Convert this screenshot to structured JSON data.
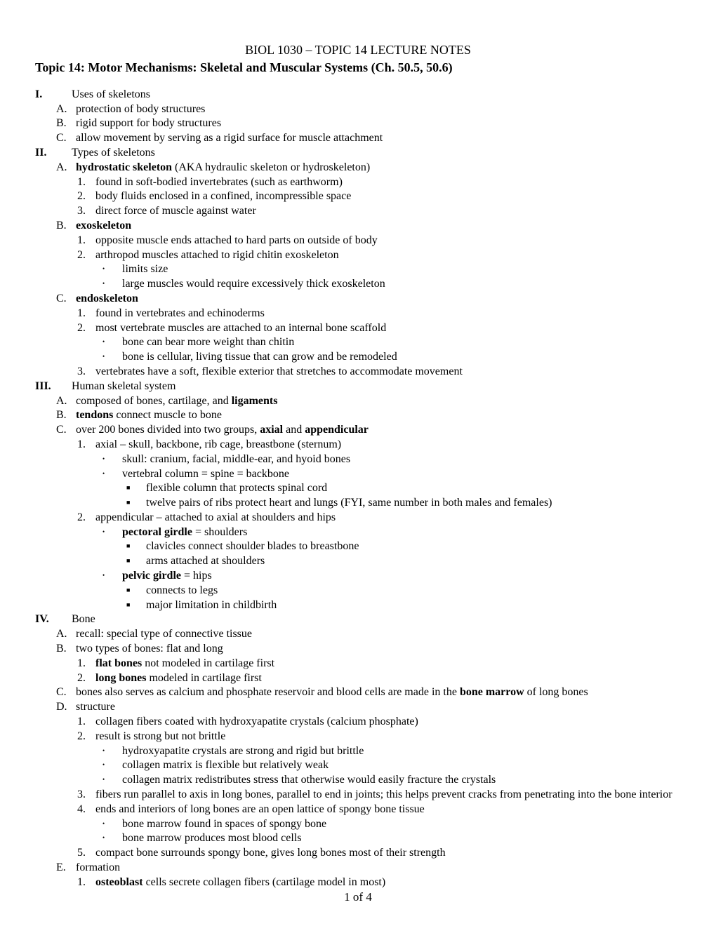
{
  "header": "BIOL 1030 – TOPIC 14 LECTURE NOTES",
  "title": "Topic 14: Motor Mechanisms: Skeletal and Muscular Systems (Ch. 50.5, 50.6)",
  "page_number": "1 of 4",
  "roman": {
    "I": {
      "label": "Uses of skeletons",
      "A": "protection of body structures",
      "B": "rigid support for body structures",
      "C": "allow movement by serving as a rigid surface for muscle attachment"
    },
    "II": {
      "label": "Types of skeletons",
      "A": {
        "label_pre": "hydrostatic skeleton",
        "label_post": " (AKA hydraulic skeleton or hydroskeleton)",
        "1": "found in soft-bodied invertebrates (such as earthworm)",
        "2": "body fluids enclosed in a confined, incompressible space",
        "3": "direct force of muscle against water"
      },
      "B": {
        "label": "exoskeleton",
        "1": "opposite muscle ends attached to hard parts on outside of body",
        "2": {
          "label": "arthropod muscles attached to rigid chitin exoskeleton",
          "b1": "limits size",
          "b2": "large muscles would require excessively thick exoskeleton"
        }
      },
      "C": {
        "label": "endoskeleton",
        "1": "found in vertebrates and echinoderms",
        "2": {
          "label": "most vertebrate muscles are attached to an internal bone scaffold",
          "b1": "bone can bear more weight than chitin",
          "b2": "bone is cellular, living tissue that can grow and be remodeled"
        },
        "3": "vertebrates have a soft, flexible exterior that stretches to accommodate movement"
      }
    },
    "III": {
      "label": "Human skeletal system",
      "A": {
        "pre": "composed of bones, cartilage, and ",
        "bold": "ligaments"
      },
      "B": {
        "bold": "tendons",
        "post": " connect muscle to bone"
      },
      "C": {
        "pre": "over 200 bones divided into two groups, ",
        "bold1": "axial",
        "mid": " and ",
        "bold2": "appendicular",
        "1": {
          "label": "axial – skull, backbone, rib cage, breastbone (sternum)",
          "b1": "skull: cranium, facial, middle-ear, and hyoid bones",
          "b2": {
            "label": "vertebral column = spine = backbone",
            "s1": "flexible column that protects spinal cord",
            "s2": "twelve pairs of ribs protect heart and lungs (FYI, same number in both males and females)"
          }
        },
        "2": {
          "label": "appendicular – attached to axial at shoulders and hips",
          "b1": {
            "bold": "pectoral girdle",
            "post": " = shoulders",
            "s1": "clavicles connect shoulder blades to breastbone",
            "s2": "arms attached at shoulders"
          },
          "b2": {
            "bold": "pelvic girdle",
            "post": " = hips",
            "s1": "connects to legs",
            "s2": "major limitation in childbirth"
          }
        }
      }
    },
    "IV": {
      "label": "Bone",
      "A": "recall: special type of connective tissue",
      "B": {
        "label": "two types of bones: flat and long",
        "1": {
          "bold": "flat bones",
          "post": " not modeled in cartilage first"
        },
        "2": {
          "bold": "long bones",
          "post": " modeled in cartilage first"
        }
      },
      "C": {
        "pre": "bones also serves as calcium and phosphate reservoir and blood cells are made in the ",
        "bold": "bone marrow",
        "post": " of long bones"
      },
      "D": {
        "label": "structure",
        "1": "collagen fibers coated with hydroxyapatite crystals (calcium phosphate)",
        "2": {
          "label": "result is strong but not brittle",
          "b1": "hydroxyapatite crystals are strong and rigid but brittle",
          "b2": "collagen matrix is flexible but relatively weak",
          "b3": "collagen matrix redistributes stress that otherwise would easily fracture the crystals"
        },
        "3": "fibers run parallel to axis in long bones, parallel to end in joints; this helps prevent cracks from penetrating into the bone interior",
        "4": {
          "label": "ends and interiors of long bones are an open lattice of spongy bone tissue",
          "b1": "bone marrow found in spaces of spongy bone",
          "b2": "bone marrow produces most blood cells"
        },
        "5": "compact bone surrounds spongy bone, gives long bones most of their strength"
      },
      "E": {
        "label": "formation",
        "1": {
          "bold": "osteoblast",
          "post": " cells secrete collagen fibers (cartilage model in most)"
        }
      }
    }
  }
}
